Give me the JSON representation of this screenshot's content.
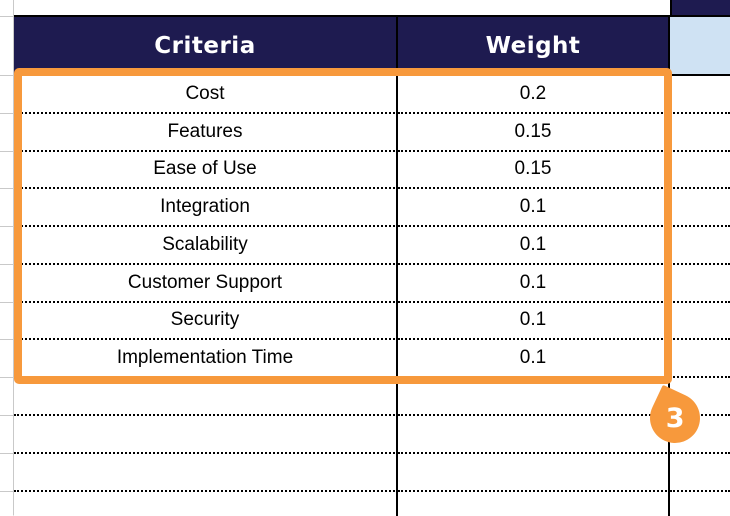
{
  "sheet": {
    "header": {
      "criteria_label": "Criteria",
      "weight_label": "Weight"
    },
    "rows": [
      {
        "criteria": "Cost",
        "weight": "0.2"
      },
      {
        "criteria": "Features",
        "weight": "0.15"
      },
      {
        "criteria": "Ease of Use",
        "weight": "0.15"
      },
      {
        "criteria": "Integration",
        "weight": "0.1"
      },
      {
        "criteria": "Scalability",
        "weight": "0.1"
      },
      {
        "criteria": "Customer Support",
        "weight": "0.1"
      },
      {
        "criteria": "Security",
        "weight": "0.1"
      },
      {
        "criteria": "Implementation Time",
        "weight": "0.1"
      }
    ],
    "empty_row_count": 4
  },
  "annotation": {
    "badge_label": "3"
  },
  "colors": {
    "navy": "#1E1B50",
    "orange": "#F7993C",
    "light_blue": "#CFE2F3",
    "grid_gray": "#C9C9C9"
  }
}
